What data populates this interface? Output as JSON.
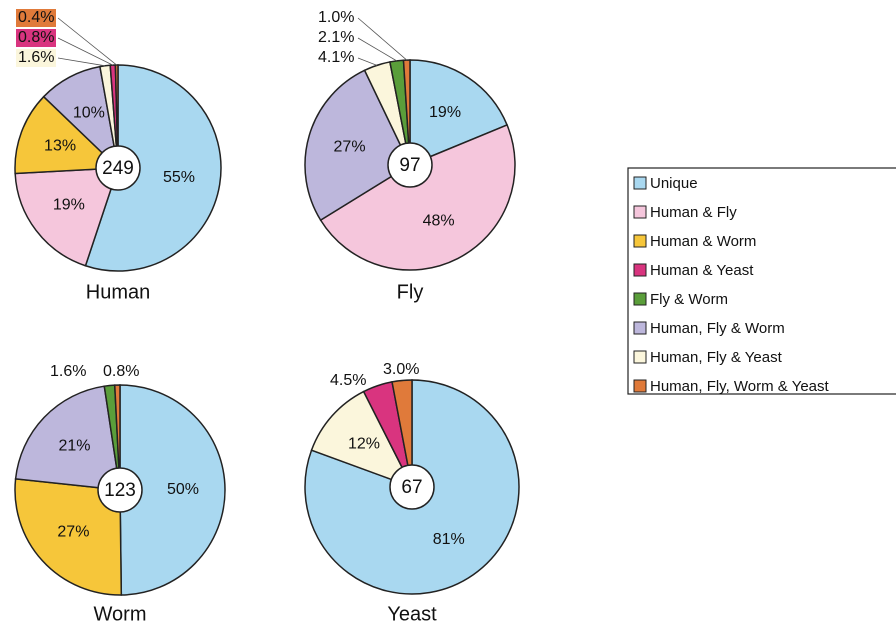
{
  "chart_data": [
    {
      "type": "pie",
      "title": "Human",
      "total": 249,
      "categories": [
        "Unique",
        "Human & Fly",
        "Human & Worm",
        "Human, Fly & Worm",
        "Human, Fly & Yeast",
        "Human & Yeast",
        "Human, Fly, Worm & Yeast"
      ],
      "values": [
        55,
        19,
        13,
        10,
        1.6,
        0.8,
        0.4
      ],
      "value_labels": [
        "55%",
        "19%",
        "13%",
        "10%",
        "1.6%",
        "0.8%",
        "0.4%"
      ],
      "colors": [
        "#a9d8f0",
        "#f5c6dc",
        "#f6c63a",
        "#bdb7dc",
        "#fbf6dc",
        "#d9347f",
        "#e07a3a"
      ]
    },
    {
      "type": "pie",
      "title": "Fly",
      "total": 97,
      "categories": [
        "Unique",
        "Human & Fly",
        "Human, Fly & Worm",
        "Human, Fly & Yeast",
        "Fly & Worm",
        "Human, Fly, Worm & Yeast"
      ],
      "values": [
        19,
        48,
        27,
        4.1,
        2.1,
        1.0
      ],
      "value_labels": [
        "19%",
        "48%",
        "27%",
        "4.1%",
        "2.1%",
        "1.0%"
      ],
      "colors": [
        "#a9d8f0",
        "#f5c6dc",
        "#bdb7dc",
        "#fbf6dc",
        "#5a9e3a",
        "#e07a3a"
      ]
    },
    {
      "type": "pie",
      "title": "Worm",
      "total": 123,
      "categories": [
        "Unique",
        "Human & Worm",
        "Human, Fly & Worm",
        "Fly & Worm",
        "Human, Fly, Worm & Yeast"
      ],
      "values": [
        50,
        27,
        21,
        1.6,
        0.8
      ],
      "value_labels": [
        "50%",
        "27%",
        "21%",
        "1.6%",
        "0.8%"
      ],
      "colors": [
        "#a9d8f0",
        "#f6c63a",
        "#bdb7dc",
        "#5a9e3a",
        "#e07a3a"
      ]
    },
    {
      "type": "pie",
      "title": "Yeast",
      "total": 67,
      "categories": [
        "Unique",
        "Human, Fly & Yeast",
        "Human & Yeast",
        "Human, Fly, Worm & Yeast"
      ],
      "values": [
        81,
        12,
        4.5,
        3.0
      ],
      "value_labels": [
        "81%",
        "12%",
        "4.5%",
        "3.0%"
      ],
      "colors": [
        "#a9d8f0",
        "#fbf6dc",
        "#d9347f",
        "#e07a3a"
      ]
    }
  ],
  "legend": {
    "labels": [
      "Unique",
      "Human & Fly",
      "Human & Worm",
      "Human & Yeast",
      "Fly & Worm",
      "Human, Fly & Worm",
      "Human, Fly & Yeast",
      "Human, Fly, Worm & Yeast"
    ],
    "colors": [
      "#a9d8f0",
      "#f5c6dc",
      "#f6c63a",
      "#d9347f",
      "#5a9e3a",
      "#bdb7dc",
      "#fbf6dc",
      "#e07a3a"
    ]
  }
}
